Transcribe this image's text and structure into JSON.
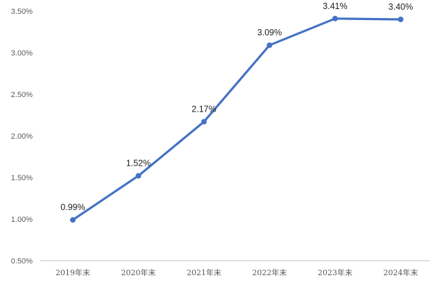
{
  "chart_data": {
    "type": "line",
    "title": "",
    "xlabel": "",
    "ylabel": "",
    "categories": [
      "2019年末",
      "2020年末",
      "2021年末",
      "2022年末",
      "2023年末",
      "2024年末"
    ],
    "series": [
      {
        "values": [
          0.99,
          1.52,
          2.17,
          3.09,
          3.41,
          3.4
        ],
        "labels": [
          "0.99%",
          "1.52%",
          "2.17%",
          "3.09%",
          "3.41%",
          "3.40%"
        ],
        "color": "#4472C4"
      }
    ],
    "ylim": [
      0.5,
      3.5
    ],
    "yticks": [
      3.5,
      3.0,
      2.5,
      2.0,
      1.5,
      1.0,
      0.5
    ],
    "ytick_labels": [
      "3.50%",
      "3.00%",
      "2.50%",
      "2.00%",
      "1.50%",
      "1.00%",
      "0.50%"
    ],
    "grid": false,
    "legend": "none",
    "axis_color": "#bfbfbf"
  }
}
